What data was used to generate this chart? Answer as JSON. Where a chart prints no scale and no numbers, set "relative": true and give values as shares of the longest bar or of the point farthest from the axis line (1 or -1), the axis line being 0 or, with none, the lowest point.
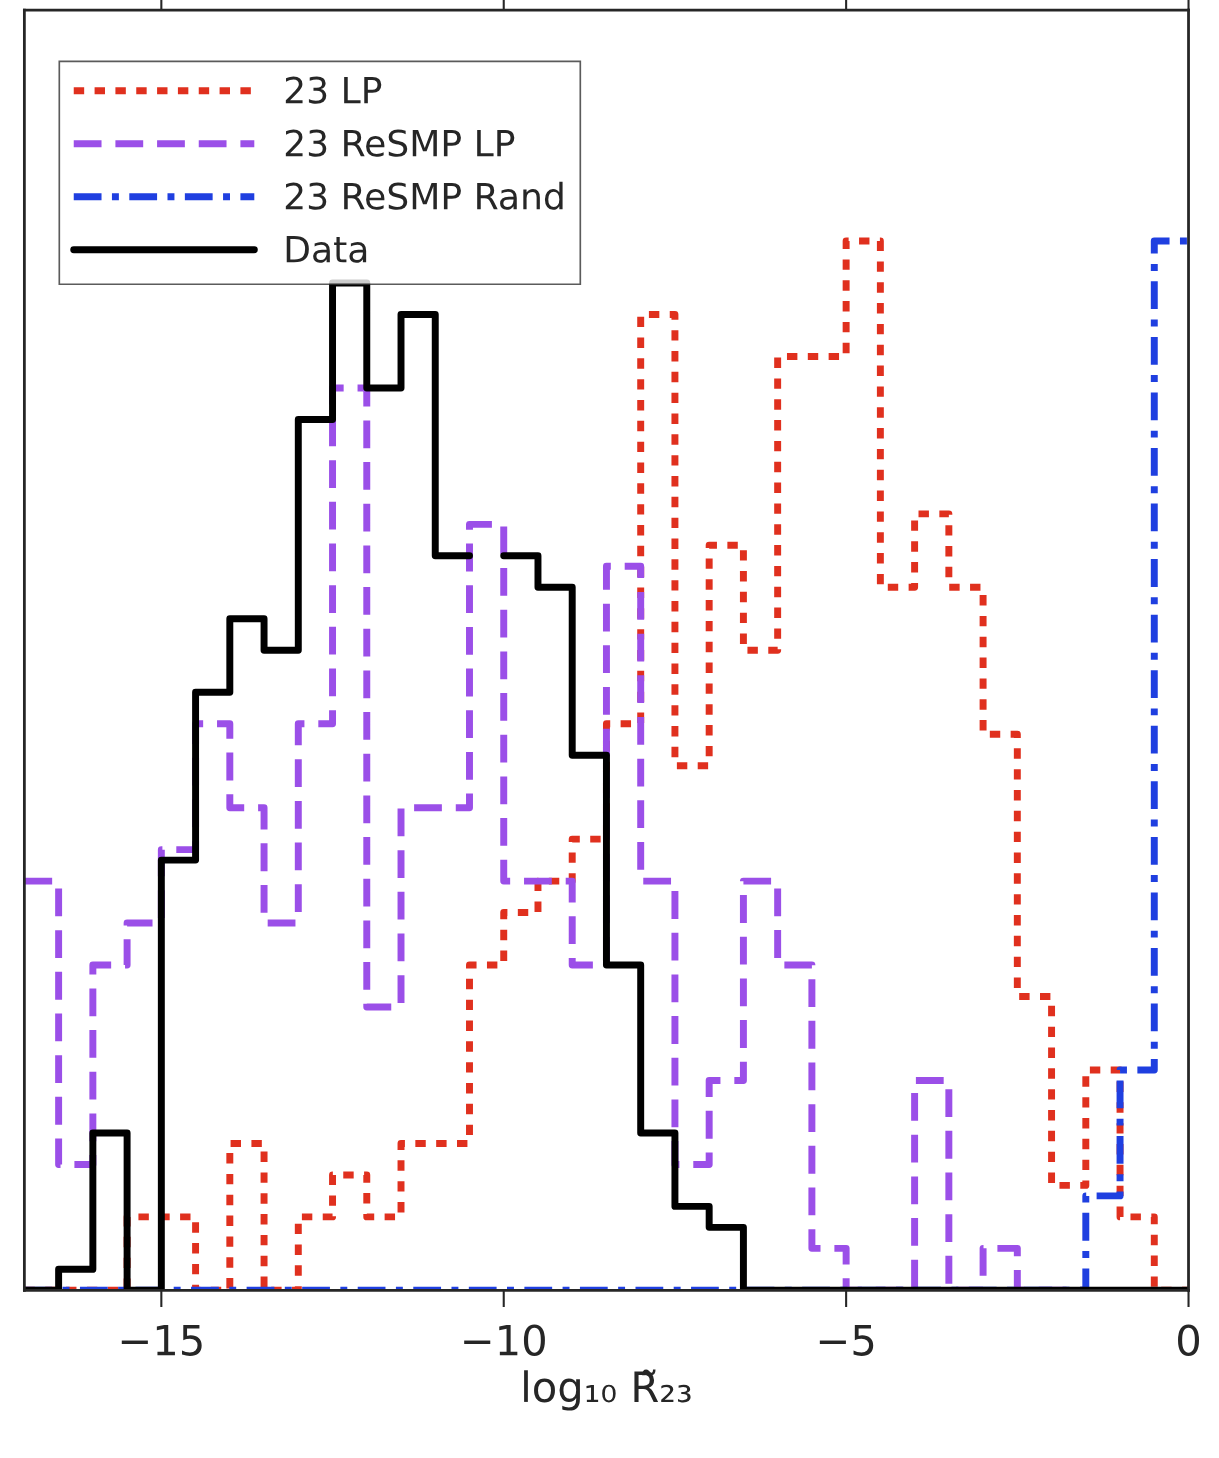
{
  "chart_data": {
    "type": "step",
    "relative": true,
    "xlabel": "log₁₀ R̃₂₃",
    "xlim": [
      -17,
      0
    ],
    "xticks": [
      {
        "value": -15,
        "label": "−15"
      },
      {
        "value": -10,
        "label": "−10"
      },
      {
        "value": -5,
        "label": "−5"
      },
      {
        "value": 0,
        "label": "0"
      }
    ],
    "legend": "top left",
    "tick_labels": "x",
    "x": [
      -17,
      -16.5,
      -16,
      -15.5,
      -15,
      -14.5,
      -14,
      -13.5,
      -13,
      -12.5,
      -12,
      -11.5,
      -11,
      -10.5,
      -10,
      -9.5,
      -9,
      -8.5,
      -8,
      -7.5,
      -7,
      -6.5,
      -6,
      -5.5,
      -5,
      -4.5,
      -4,
      -3.5,
      -3,
      -2.5,
      -2,
      -1.5,
      -1,
      -0.5,
      0
    ],
    "series": [
      {
        "name": "23 LP",
        "color": "#e0301e",
        "line_style": "dotted",
        "values": [
          0,
          0,
          0,
          0.07,
          0.07,
          0,
          0.14,
          0,
          0.07,
          0.11,
          0.07,
          0.14,
          0.14,
          0.31,
          0.36,
          0.39,
          0.43,
          0.54,
          0.93,
          0.5,
          0.71,
          0.61,
          0.89,
          0.89,
          1.0,
          0.67,
          0.74,
          0.67,
          0.53,
          0.28,
          0.1,
          0.21,
          0.07,
          0,
          0
        ]
      },
      {
        "name": "23 ReSMP LP",
        "color": "#9b4fe8",
        "line_style": "dashed",
        "values": [
          0.39,
          0.12,
          0.31,
          0.35,
          0.42,
          0.54,
          0.46,
          0.35,
          0.54,
          0.86,
          0.27,
          0.46,
          0.46,
          0.73,
          0.39,
          0.39,
          0.31,
          0.69,
          0.39,
          0.12,
          0.2,
          0.39,
          0.31,
          0.04,
          0,
          0,
          0.2,
          0,
          0.04,
          0,
          0,
          0,
          null,
          null,
          null
        ]
      },
      {
        "name": "23 ReSMP Rand",
        "color": "#1f3fe0",
        "line_style": "dashdot",
        "values": [
          0,
          0,
          0,
          0,
          0,
          0,
          0,
          0,
          0,
          0,
          0,
          0,
          0,
          0,
          0,
          0,
          0,
          0,
          0,
          0,
          0,
          0,
          0,
          0,
          0,
          0,
          0,
          0,
          0,
          0,
          0,
          0.09,
          0.21,
          1.0,
          1.0
        ]
      },
      {
        "name": "Data",
        "color": "#000000",
        "line_style": "solid",
        "values": [
          0,
          0.02,
          0.15,
          0,
          0.41,
          0.57,
          0.64,
          0.61,
          0.83,
          0.96,
          0.86,
          0.93,
          0.7,
          null,
          0.7,
          0.67,
          0.51,
          0.31,
          0.15,
          0.08,
          0.06,
          0,
          0,
          0,
          0,
          0,
          0,
          0,
          0,
          0,
          0,
          0,
          0,
          0,
          0
        ]
      }
    ]
  }
}
